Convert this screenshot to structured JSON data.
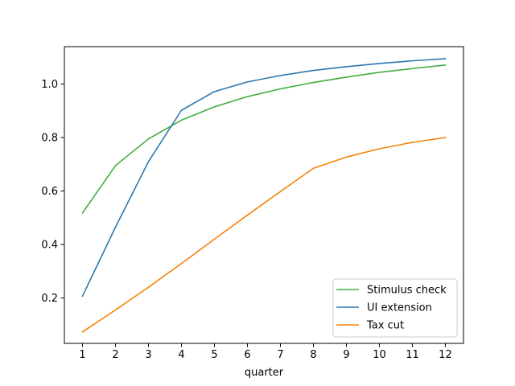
{
  "chart_data": {
    "type": "line",
    "title": "",
    "xlabel": "quarter",
    "ylabel": "",
    "x": [
      1,
      2,
      3,
      4,
      5,
      6,
      7,
      8,
      9,
      10,
      11,
      12
    ],
    "xlim": [
      0.45,
      12.55
    ],
    "ylim": [
      0.03,
      1.14
    ],
    "xticks": [
      1,
      2,
      3,
      4,
      5,
      6,
      7,
      8,
      9,
      10,
      11,
      12
    ],
    "yticks": [
      0.2,
      0.4,
      0.6,
      0.8,
      1.0
    ],
    "ytick_labels": [
      "0.2",
      "0.4",
      "0.6",
      "0.8",
      "1.0"
    ],
    "grid": false,
    "legend_position": "lower-right",
    "series": [
      {
        "name": "Stimulus check",
        "color": "#3eaf3e",
        "values": [
          0.518,
          0.695,
          0.795,
          0.865,
          0.915,
          0.953,
          0.982,
          1.006,
          1.026,
          1.044,
          1.058,
          1.071
        ]
      },
      {
        "name": "UI extension",
        "color": "#2e77ad",
        "values": [
          0.207,
          0.465,
          0.71,
          0.902,
          0.972,
          1.008,
          1.032,
          1.051,
          1.065,
          1.077,
          1.087,
          1.095
        ]
      },
      {
        "name": "Tax cut",
        "color": "#f5830c",
        "values": [
          0.073,
          0.155,
          0.24,
          0.329,
          0.42,
          0.51,
          0.598,
          0.685,
          0.727,
          0.758,
          0.782,
          0.8
        ]
      }
    ]
  }
}
